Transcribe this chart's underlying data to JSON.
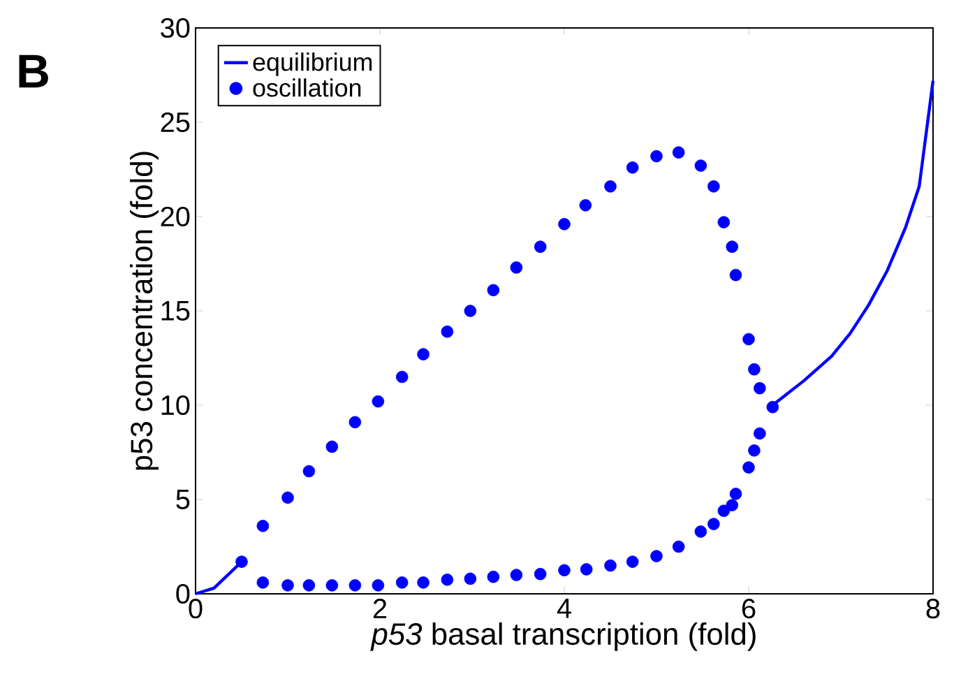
{
  "chart_data": {
    "type": "line",
    "xlabel": "*p53* basal transcription (fold)",
    "ylabel": "p53 concentration (fold)",
    "annotations": [
      "B"
    ],
    "xlim": [
      0,
      8
    ],
    "ylim": [
      0,
      30
    ],
    "xticks": [
      0,
      2,
      4,
      6,
      8
    ],
    "yticks": [
      0,
      5,
      10,
      15,
      20,
      25,
      30
    ],
    "grid": false,
    "legend": "top left",
    "series": [
      {
        "name": "equilibrium",
        "color": "#0000ff",
        "line_style": "solid",
        "marker": "none",
        "x": [
          0,
          0.2,
          0.5,
          3,
          6.26,
          6.6,
          6.9,
          7.1,
          7.3,
          7.5,
          7.7,
          7.85,
          8
        ],
        "values": [
          0,
          0.3,
          1.7,
          null,
          10.0,
          11.3,
          12.6,
          13.8,
          15.3,
          17.1,
          19.4,
          21.6,
          27.2
        ]
      },
      {
        "name": "oscillation",
        "type": "scatter",
        "color": "#0000ff",
        "marker": "circle",
        "x": [
          0.5,
          0.73,
          1.0,
          1.23,
          1.48,
          1.73,
          1.98,
          2.24,
          2.47,
          2.73,
          2.98,
          3.23,
          3.48,
          3.74,
          4.0,
          4.23,
          4.5,
          4.74,
          5.0,
          5.24,
          5.48,
          5.62,
          5.73,
          5.82,
          5.86,
          6.0,
          6.06,
          6.12,
          6.26,
          6.12,
          6.06,
          6.0,
          5.86,
          5.82,
          5.73,
          5.62,
          5.48,
          5.24,
          5.0,
          4.74,
          4.5,
          4.24,
          4.0,
          3.74,
          3.48,
          3.23,
          2.98,
          2.73,
          2.47,
          2.24,
          1.98,
          1.73,
          1.48,
          1.23,
          1.0,
          0.73
        ],
        "values": [
          1.7,
          3.6,
          5.1,
          6.5,
          7.8,
          9.1,
          10.2,
          11.5,
          12.7,
          13.9,
          15.0,
          16.1,
          17.3,
          18.4,
          19.6,
          20.6,
          21.6,
          22.6,
          23.2,
          23.4,
          22.7,
          21.6,
          19.7,
          18.4,
          16.9,
          13.5,
          11.9,
          10.9,
          9.9,
          8.5,
          7.6,
          6.7,
          5.3,
          4.7,
          4.4,
          3.7,
          3.3,
          2.5,
          2.0,
          1.7,
          1.5,
          1.3,
          1.25,
          1.05,
          1.0,
          0.9,
          0.8,
          0.75,
          0.6,
          0.6,
          0.45,
          0.45,
          0.45,
          0.45,
          0.45,
          0.6
        ]
      }
    ]
  }
}
